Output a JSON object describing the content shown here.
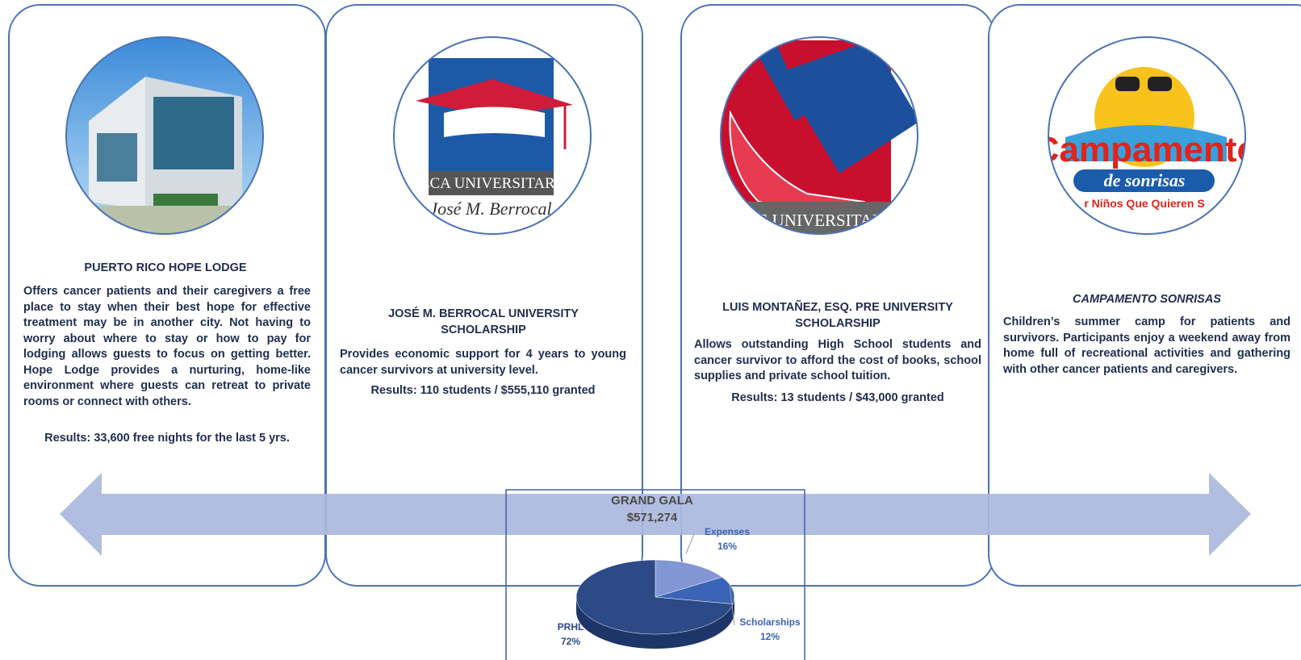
{
  "cards": [
    {
      "title": "PUERTO RICO HOPE LODGE",
      "body": "Offers cancer patients and their caregivers a free place to stay when their best hope for effective treatment may be in another city. Not having to worry about where to stay or how to pay for lodging allows guests to focus on getting better. Hope Lodge provides a nurturing, home-like environment where guests can retreat to private rooms or connect with others.",
      "results": "Results:  33,600 free nights for the last 5 yrs."
    },
    {
      "title": "JOSÉ M. BERROCAL UNIVERSITY SCHOLARSHIP",
      "body": "Provides economic support for 4 years to young cancer survivors at university level.",
      "results": "Results: 110 students / $555,110 granted",
      "logo_texts": [
        "BECA UNIVERSITARIA",
        "José M. Berrocal"
      ]
    },
    {
      "title": "LUIS MONTAÑEZ, ESQ. PRE UNIVERSITY SCHOLARSHIP",
      "body": "Allows outstanding High School students and cancer survivor to afford the cost of books, school supplies and private school tuition.",
      "results": "Results: 13 students / $43,000 granted",
      "logo_texts": [
        "PRE UNIVERSITARIA"
      ]
    },
    {
      "title": "CAMPAMENTO SONRISAS",
      "body": "Children’s summer camp for patients and survivors.  Participants enjoy a weekend away from home full of recreational activities and gathering with other cancer patients and caregivers.",
      "logo_texts": [
        "Campamento",
        "de sonrisas",
        "r Niños Que Quieren S"
      ]
    }
  ],
  "chart_data": {
    "type": "pie",
    "title": "GRAND GALA",
    "subtitle": "$571,274",
    "categories": [
      "Expenses",
      "Scholarships",
      "PRHL"
    ],
    "values": [
      16,
      12,
      72
    ],
    "value_labels": [
      "16%",
      "12%",
      "72%"
    ],
    "colors": [
      "#8196d2",
      "#3b63b6",
      "#2c4a86"
    ]
  }
}
